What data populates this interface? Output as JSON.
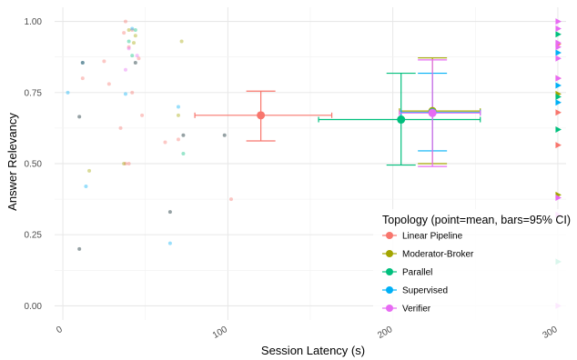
{
  "chart_data": {
    "type": "scatter",
    "xlabel": "Session Latency (s)",
    "ylabel": "Answer Relevancy",
    "xlim": [
      -5,
      305
    ],
    "ylim": [
      -0.05,
      1.05
    ],
    "x_ticks": [
      {
        "value": 0,
        "label": "0"
      },
      {
        "value": 100,
        "label": "100"
      },
      {
        "value": 200,
        "label": "200"
      },
      {
        "value": 300,
        "label": "300"
      }
    ],
    "y_ticks": [
      {
        "value": 0.0,
        "label": "0.00"
      },
      {
        "value": 0.25,
        "label": "0.25"
      },
      {
        "value": 0.5,
        "label": "0.50"
      },
      {
        "value": 0.75,
        "label": "0.75"
      },
      {
        "value": 1.0,
        "label": "1.00"
      }
    ],
    "grid": true,
    "legend": {
      "title": "Topology (point=mean, bars=95% CI)",
      "position": "bottom-right"
    },
    "series": [
      {
        "name": "Linear Pipeline",
        "color": "#F8766D",
        "mean": {
          "x": 120,
          "y": 0.67
        },
        "ci_x": [
          80,
          163
        ],
        "ci_y": [
          0.58,
          0.755
        ],
        "points": [
          [
            38,
            1.0
          ],
          [
            42,
            0.97
          ],
          [
            37,
            0.96
          ],
          [
            25,
            0.86
          ],
          [
            46,
            0.87
          ],
          [
            12,
            0.8
          ],
          [
            40,
            0.91
          ],
          [
            28,
            0.78
          ],
          [
            42,
            0.75
          ],
          [
            48,
            0.67
          ],
          [
            35,
            0.625
          ],
          [
            38,
            0.5
          ],
          [
            62,
            0.575
          ],
          [
            70,
            0.585
          ],
          [
            102,
            0.375
          ],
          [
            40,
            0.5
          ]
        ],
        "timeout_points": [
          0.92,
          0.8,
          0.68,
          0.565
        ]
      },
      {
        "name": "Moderator-Broker",
        "color": "#A3A500",
        "mean": {
          "x": 224,
          "y": 0.685
        },
        "ci_x": [
          204,
          253
        ],
        "ci_y": [
          0.5,
          0.872
        ],
        "points": [
          [
            40,
            0.97
          ],
          [
            43,
            0.925
          ],
          [
            37,
            0.5
          ],
          [
            72,
            0.93
          ],
          [
            70,
            0.67
          ],
          [
            16,
            0.475
          ],
          [
            44,
            0.95
          ]
        ],
        "timeout_points": [
          0.745,
          0.39
        ]
      },
      {
        "name": "Parallel",
        "color": "#00BF7D",
        "mean": {
          "x": 205,
          "y": 0.655
        },
        "ci_x": [
          155,
          253
        ],
        "ci_y": [
          0.495,
          0.818
        ],
        "points": [
          [
            40,
            0.93
          ],
          [
            44,
            0.97
          ],
          [
            73,
            0.535
          ],
          [
            42,
            0.88
          ]
        ],
        "timeout_points": [
          0.955,
          0.735,
          0.62,
          0.155
        ]
      },
      {
        "name": "Supervised",
        "color": "#00B0F6",
        "mean": {
          "x": 224,
          "y": 0.68
        },
        "ci_x": [
          205,
          253
        ],
        "ci_y": [
          0.545,
          0.818
        ],
        "points": [
          [
            14,
            0.42
          ],
          [
            12,
            0.855
          ],
          [
            42,
            0.975
          ],
          [
            38,
            0.745
          ],
          [
            70,
            0.7
          ],
          [
            65,
            0.22
          ],
          [
            3,
            0.75
          ]
        ],
        "timeout_points": [
          0.89,
          0.775,
          0.715
        ]
      },
      {
        "name": "Verifier",
        "color": "#E76BF3",
        "mean": {
          "x": 224,
          "y": 0.678
        },
        "ci_x": [
          204,
          253
        ],
        "ci_y": [
          0.49,
          0.865
        ],
        "points": [
          [
            40,
            0.905
          ],
          [
            45,
            0.88
          ],
          [
            38,
            0.83
          ]
        ],
        "timeout_points": [
          1.0,
          0.975,
          0.925,
          0.91,
          0.87,
          0.8,
          0.38,
          0.32,
          0.0
        ]
      }
    ],
    "extra_points": [
      {
        "color": "#5c6e73",
        "points": [
          [
            10,
            0.665
          ],
          [
            12,
            0.855
          ],
          [
            10,
            0.2
          ],
          [
            98,
            0.6
          ],
          [
            65,
            0.33
          ],
          [
            44,
            0.855
          ],
          [
            73,
            0.6
          ]
        ]
      }
    ]
  }
}
